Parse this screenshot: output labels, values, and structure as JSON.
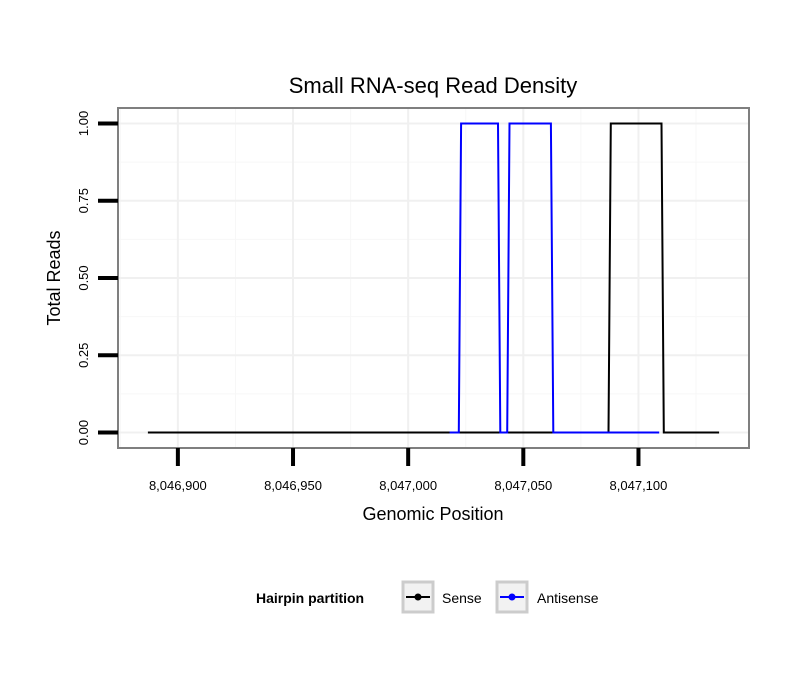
{
  "chart_data": {
    "type": "line",
    "title": "Small RNA-seq Read Density",
    "xlabel": "Genomic Position",
    "ylabel": "Total Reads",
    "xlim": [
      8046874,
      8047148
    ],
    "ylim": [
      -0.05,
      1.05
    ],
    "x_ticks": [
      8046900,
      8046950,
      8047000,
      8047050,
      8047100
    ],
    "x_tick_labels": [
      "8,046,900",
      "8,046,950",
      "8,047,000",
      "8,047,050",
      "8,047,100"
    ],
    "y_ticks": [
      0,
      0.25,
      0.5,
      0.75,
      1.0
    ],
    "y_tick_labels": [
      "0.00",
      "0.25",
      "0.50",
      "0.75",
      "1.00"
    ],
    "grid": true,
    "legend": {
      "title": "Hairpin partition",
      "position": "bottom",
      "entries": [
        "Sense",
        "Antisense"
      ]
    },
    "series": [
      {
        "name": "Sense",
        "color": "#000000",
        "x": [
          8046887,
          8047087,
          8047088,
          8047110,
          8047111,
          8047135
        ],
        "y": [
          0,
          0,
          1,
          1,
          0,
          0
        ]
      },
      {
        "name": "Antisense",
        "color": "#0000ff",
        "x": [
          8047018,
          8047022,
          8047023,
          8047039,
          8047040,
          8047043,
          8047044,
          8047062,
          8047063,
          8047085,
          8047086,
          8047109
        ],
        "y": [
          0,
          0,
          1,
          1,
          0,
          0,
          1,
          1,
          0,
          0,
          0,
          0
        ]
      }
    ]
  }
}
